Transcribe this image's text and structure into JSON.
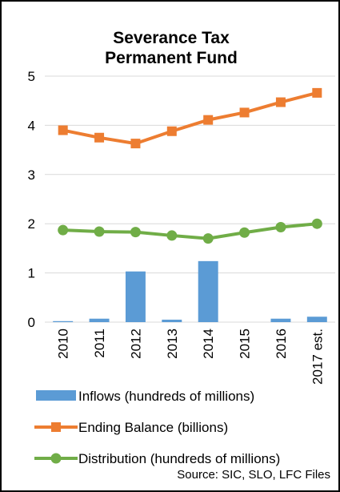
{
  "chart_data": {
    "type": "bar+line",
    "title_lines": [
      "Severance Tax",
      "Permanent Fund"
    ],
    "categories": [
      "2010",
      "2011",
      "2012",
      "2013",
      "2014",
      "2015",
      "2016",
      "2017 est."
    ],
    "ylim": [
      0,
      5
    ],
    "yticks": [
      "0",
      "1",
      "2",
      "3",
      "4",
      "5"
    ],
    "grid": true,
    "legend_position": "bottom",
    "series": [
      {
        "name": "Inflows (hundreds of millions)",
        "kind": "bar",
        "color": "#5b9bd5",
        "values": [
          0.02,
          0.07,
          1.03,
          0.05,
          1.24,
          0.0,
          0.07,
          0.11
        ]
      },
      {
        "name": "Ending Balance (billions)",
        "kind": "line",
        "marker": "square",
        "color": "#ed7d31",
        "values": [
          3.9,
          3.75,
          3.63,
          3.88,
          4.11,
          4.26,
          4.47,
          4.66
        ]
      },
      {
        "name": "Distribution (hundreds of millions)",
        "kind": "line",
        "marker": "circle",
        "color": "#70ad47",
        "values": [
          1.87,
          1.84,
          1.83,
          1.76,
          1.7,
          1.82,
          1.93,
          2.0
        ]
      }
    ],
    "source_note": "Source: SIC, SLO, LFC Files"
  }
}
